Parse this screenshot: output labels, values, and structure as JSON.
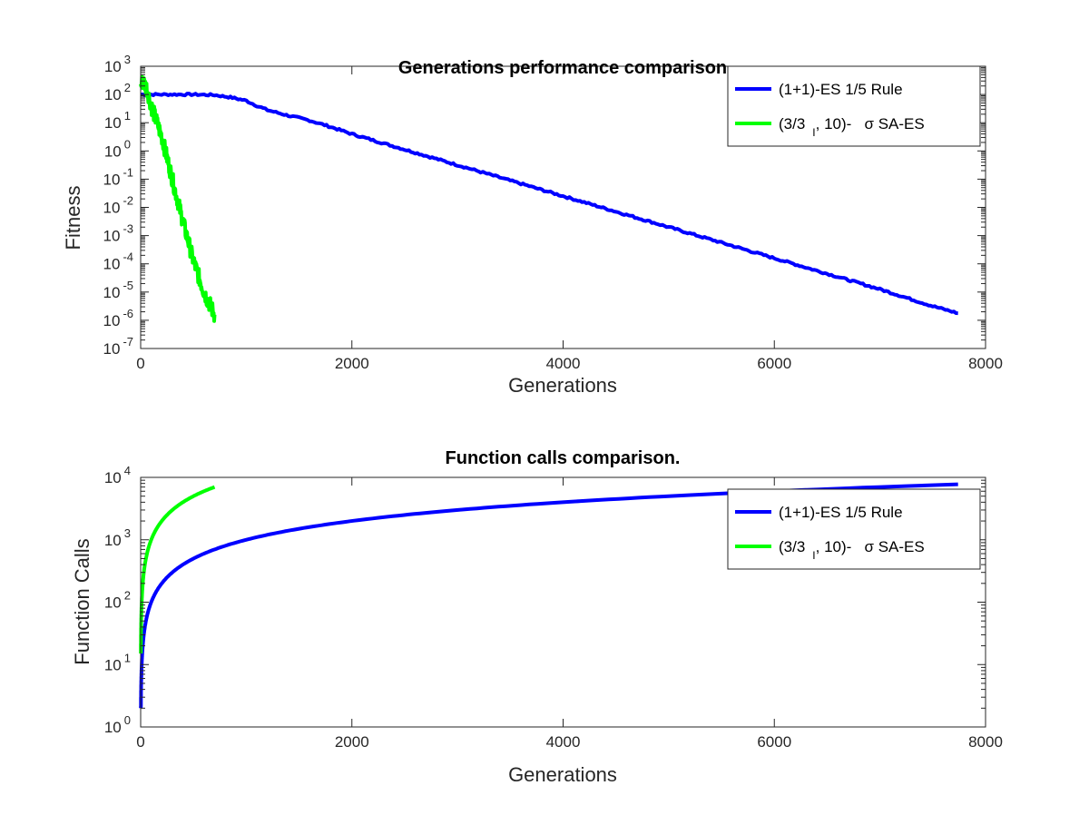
{
  "colors": {
    "blue": "#0000ff",
    "green": "#00ff00",
    "axis": "#262626"
  },
  "chart_data": [
    {
      "type": "line",
      "title": "Generations performance comparison",
      "xlabel": "Generations",
      "ylabel": "Fitness",
      "xlim": [
        0,
        8000
      ],
      "ylim_exp": [
        -7,
        3
      ],
      "yscale": "log",
      "x_ticks": [
        "0",
        "2000",
        "4000",
        "6000",
        "8000"
      ],
      "y_tick_exps": [
        "3",
        "2",
        "1",
        "0",
        "-1",
        "-2",
        "-3",
        "-4",
        "-5",
        "-6",
        "-7"
      ],
      "legend": {
        "position": "top-right",
        "entries": [
          {
            "pre": "(1+1)-ES 1/5 Rule",
            "sub": "",
            "post": ""
          },
          {
            "pre": "(3/3",
            "sub": "I",
            "post": ", 10)-   σ SA-ES"
          }
        ]
      },
      "series": [
        {
          "name": "(1+1)-ES 1/5 Rule",
          "color": "#0000ff",
          "noise": 0.035,
          "x": [
            0,
            200,
            500,
            700,
            850,
            1000,
            1100,
            1200,
            1400,
            1600,
            1800,
            2000,
            2500,
            3000,
            3500,
            4000,
            4500,
            5000,
            5500,
            6000,
            6500,
            7000,
            7500,
            7740
          ],
          "y_exp": [
            2.0,
            2.0,
            2.0,
            1.98,
            1.9,
            1.78,
            1.6,
            1.45,
            1.25,
            1.08,
            0.85,
            0.6,
            0.05,
            -0.5,
            -1.05,
            -1.6,
            -2.15,
            -2.7,
            -3.25,
            -3.8,
            -4.35,
            -4.9,
            -5.5,
            -5.75
          ]
        },
        {
          "name": "(3/3I, 10)- σ SA-ES",
          "color": "#00ff00",
          "noise": 0.3,
          "x": [
            0,
            20,
            60,
            100,
            200,
            300,
            400,
            500,
            600,
            700
          ],
          "y_exp": [
            2.3,
            2.5,
            2.2,
            1.6,
            0.5,
            -1.0,
            -2.5,
            -3.9,
            -5.0,
            -5.8
          ]
        }
      ]
    },
    {
      "type": "line",
      "title": "Function calls comparison.",
      "xlabel": "Generations",
      "ylabel": "Function Calls",
      "xlim": [
        0,
        8000
      ],
      "ylim_exp": [
        0,
        4
      ],
      "yscale": "log",
      "x_ticks": [
        "0",
        "2000",
        "4000",
        "6000",
        "8000"
      ],
      "y_tick_exps": [
        "4",
        "3",
        "2",
        "1",
        "0"
      ],
      "legend": {
        "position": "top-right",
        "entries": [
          {
            "pre": "(1+1)-ES 1/5 Rule",
            "sub": "",
            "post": ""
          },
          {
            "pre": "(3/3",
            "sub": "I",
            "post": ", 10)-   σ SA-ES"
          }
        ]
      },
      "series": [
        {
          "name": "(1+1)-ES 1/5 Rule",
          "color": "#0000ff",
          "calls_per_generation": 1,
          "x_start": 2,
          "x_end": 7740
        },
        {
          "name": "(3/3I, 10)- σ SA-ES",
          "color": "#00ff00",
          "calls_per_generation": 10,
          "x_start": 1.5,
          "x_end": 700
        }
      ]
    }
  ]
}
